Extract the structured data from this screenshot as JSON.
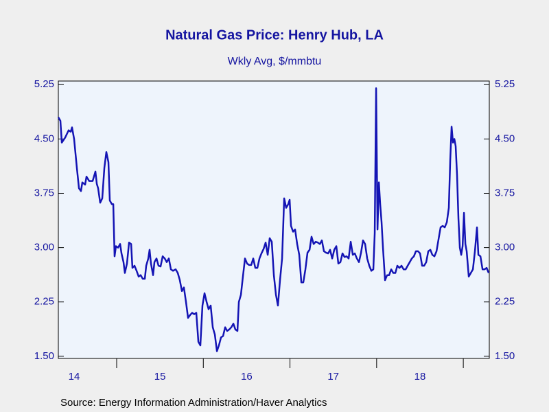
{
  "chart_data": {
    "type": "line",
    "title": "Natural Gas Price: Henry Hub, LA",
    "subtitle": "Wkly Avg, $/mmbtu",
    "source": "Source:  Energy Information Administration/Haver Analytics",
    "xlim": [
      2014.327,
      2019.3
    ],
    "xticks": [
      2015,
      2016,
      2017,
      2018,
      2019
    ],
    "xlabels": [
      {
        "value": 2014,
        "label": "14"
      },
      {
        "value": 2015,
        "label": "15"
      },
      {
        "value": 2016,
        "label": "16"
      },
      {
        "value": 2017,
        "label": "17"
      },
      {
        "value": 2018,
        "label": "18"
      }
    ],
    "ylim": [
      1.47,
      5.3
    ],
    "yticks": [
      {
        "value": 1.5,
        "label": "1.50"
      },
      {
        "value": 2.25,
        "label": "2.25"
      },
      {
        "value": 3,
        "label": "3.00"
      },
      {
        "value": 3.75,
        "label": "3.75"
      },
      {
        "value": 4.5,
        "label": "4.50"
      },
      {
        "value": 5.25,
        "label": "5.25"
      }
    ],
    "color": "#1414b4",
    "x": [
      2014.327,
      2014.351,
      2014.367,
      2014.406,
      2014.446,
      2014.47,
      2014.485,
      2014.509,
      2014.541,
      2014.565,
      2014.588,
      2014.604,
      2014.636,
      2014.652,
      2014.683,
      2014.723,
      2014.755,
      2014.771,
      2014.786,
      2014.81,
      2014.834,
      2014.858,
      2014.881,
      2014.905,
      2014.921,
      2014.945,
      2014.961,
      2014.976,
      2014.992,
      2015.016,
      2015.04,
      2015.056,
      2015.079,
      2015.095,
      2015.119,
      2015.143,
      2015.167,
      2015.182,
      2015.206,
      2015.23,
      2015.254,
      2015.277,
      2015.301,
      2015.325,
      2015.341,
      2015.365,
      2015.38,
      2015.396,
      2015.42,
      2015.436,
      2015.46,
      2015.483,
      2015.507,
      2015.531,
      2015.555,
      2015.578,
      2015.602,
      2015.626,
      2015.65,
      2015.681,
      2015.705,
      2015.729,
      2015.753,
      2015.776,
      2015.8,
      2015.824,
      2015.848,
      2015.871,
      2015.895,
      2015.919,
      2015.943,
      2015.966,
      2015.99,
      2016.014,
      2016.038,
      2016.061,
      2016.085,
      2016.109,
      2016.133,
      2016.157,
      2016.18,
      2016.204,
      2016.228,
      2016.252,
      2016.275,
      2016.299,
      2016.323,
      2016.347,
      2016.37,
      2016.394,
      2016.41,
      2016.434,
      2016.457,
      2016.481,
      2016.505,
      2016.529,
      2016.553,
      2016.576,
      2016.6,
      2016.624,
      2016.648,
      2016.671,
      2016.695,
      2016.719,
      2016.743,
      2016.766,
      2016.79,
      2016.814,
      2016.838,
      2016.861,
      2016.885,
      2016.909,
      2016.933,
      2016.956,
      2016.98,
      2016.996,
      2017.012,
      2017.036,
      2017.059,
      2017.083,
      2017.107,
      2017.131,
      2017.154,
      2017.178,
      2017.202,
      2017.226,
      2017.249,
      2017.273,
      2017.297,
      2017.321,
      2017.345,
      2017.368,
      2017.392,
      2017.416,
      2017.44,
      2017.463,
      2017.487,
      2017.511,
      2017.535,
      2017.558,
      2017.582,
      2017.606,
      2017.63,
      2017.653,
      2017.677,
      2017.701,
      2017.725,
      2017.748,
      2017.772,
      2017.796,
      2017.82,
      2017.843,
      2017.867,
      2017.891,
      2017.915,
      2017.939,
      2017.962,
      2017.978,
      2017.994,
      2018.01,
      2018.026,
      2018.041,
      2018.057,
      2018.073,
      2018.097,
      2018.121,
      2018.144,
      2018.168,
      2018.192,
      2018.216,
      2018.239,
      2018.263,
      2018.287,
      2018.311,
      2018.335,
      2018.358,
      2018.382,
      2018.406,
      2018.43,
      2018.453,
      2018.477,
      2018.501,
      2018.525,
      2018.548,
      2018.572,
      2018.596,
      2018.62,
      2018.643,
      2018.667,
      2018.691,
      2018.715,
      2018.738,
      2018.762,
      2018.786,
      2018.81,
      2018.833,
      2018.849,
      2018.865,
      2018.881,
      2018.897,
      2018.912,
      2018.928,
      2018.944,
      2018.96,
      2018.976,
      2018.992,
      2019.008,
      2019.024,
      2019.039,
      2019.063,
      2019.087,
      2019.111,
      2019.134,
      2019.158,
      2019.174,
      2019.198,
      2019.222,
      2019.245,
      2019.269,
      2019.293
    ],
    "values": [
      4.8,
      4.75,
      4.45,
      4.52,
      4.62,
      4.6,
      4.66,
      4.5,
      4.1,
      3.82,
      3.78,
      3.9,
      3.87,
      3.98,
      3.92,
      3.92,
      4.05,
      3.88,
      3.82,
      3.62,
      3.68,
      4.1,
      4.32,
      4.18,
      3.65,
      3.6,
      3.6,
      2.88,
      3.02,
      3.0,
      3.05,
      2.92,
      2.8,
      2.65,
      2.78,
      3.07,
      3.05,
      2.72,
      2.75,
      2.68,
      2.6,
      2.62,
      2.57,
      2.57,
      2.75,
      2.85,
      2.97,
      2.78,
      2.62,
      2.8,
      2.85,
      2.75,
      2.74,
      2.88,
      2.85,
      2.8,
      2.85,
      2.7,
      2.68,
      2.7,
      2.65,
      2.55,
      2.4,
      2.45,
      2.25,
      2.03,
      2.07,
      2.1,
      2.08,
      2.1,
      1.7,
      1.65,
      2.2,
      2.37,
      2.25,
      2.15,
      2.2,
      1.9,
      1.8,
      1.57,
      1.65,
      1.76,
      1.78,
      1.9,
      1.85,
      1.87,
      1.9,
      1.95,
      1.87,
      1.85,
      2.25,
      2.35,
      2.6,
      2.85,
      2.78,
      2.76,
      2.76,
      2.85,
      2.72,
      2.72,
      2.85,
      2.92,
      2.98,
      3.07,
      2.9,
      3.13,
      3.08,
      2.62,
      2.35,
      2.2,
      2.55,
      2.85,
      3.68,
      3.55,
      3.6,
      3.66,
      3.3,
      3.22,
      3.25,
      3.05,
      2.9,
      2.52,
      2.52,
      2.7,
      2.93,
      2.97,
      3.15,
      3.05,
      3.08,
      3.07,
      3.05,
      3.1,
      2.95,
      2.93,
      2.92,
      2.97,
      2.85,
      2.97,
      3.02,
      2.78,
      2.8,
      2.92,
      2.87,
      2.88,
      2.85,
      3.08,
      2.9,
      2.92,
      2.85,
      2.8,
      2.93,
      3.1,
      3.05,
      2.85,
      2.75,
      2.68,
      2.7,
      3.2,
      5.2,
      3.25,
      3.9,
      3.6,
      3.35,
      3.0,
      2.55,
      2.62,
      2.62,
      2.7,
      2.65,
      2.65,
      2.75,
      2.72,
      2.75,
      2.7,
      2.7,
      2.75,
      2.8,
      2.85,
      2.88,
      2.95,
      2.95,
      2.92,
      2.75,
      2.75,
      2.8,
      2.95,
      2.97,
      2.9,
      2.88,
      2.95,
      3.12,
      3.28,
      3.3,
      3.28,
      3.35,
      3.55,
      4.2,
      4.67,
      4.45,
      4.5,
      4.4,
      4.0,
      3.4,
      3.0,
      2.9,
      3.02,
      3.48,
      3.05,
      2.95,
      2.6,
      2.65,
      2.7,
      2.95,
      3.28,
      2.9,
      2.88,
      2.7,
      2.7,
      2.72,
      2.65
    ]
  }
}
